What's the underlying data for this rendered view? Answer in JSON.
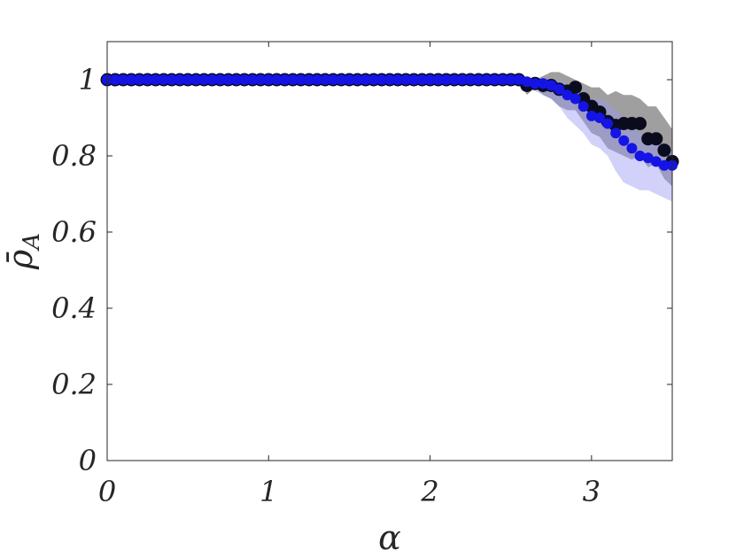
{
  "chart_data": {
    "type": "scatter",
    "title": "",
    "xlabel": "α",
    "ylabel": "ρ̄",
    "ylabel_subscript": "A",
    "xlim": [
      0,
      3.5
    ],
    "ylim": [
      0,
      1.1
    ],
    "xticks": [
      0,
      1,
      2,
      3
    ],
    "xtick_labels": [
      "0",
      "1",
      "2",
      "3"
    ],
    "yticks": [
      0,
      0.2,
      0.4,
      0.6,
      0.8,
      1
    ],
    "ytick_labels": [
      "0",
      "0.2",
      "0.4",
      "0.6",
      "0.8",
      "1"
    ],
    "grid": false,
    "legend": "none",
    "series": [
      {
        "color": "#0b0b1e",
        "band_color": "#7f7f7f",
        "x": [
          0,
          0.05,
          0.1,
          0.15,
          0.2,
          0.25,
          0.3,
          0.35,
          0.4,
          0.45,
          0.5,
          0.55,
          0.6,
          0.65,
          0.7,
          0.75,
          0.8,
          0.85,
          0.9,
          0.95,
          1,
          1.05,
          1.1,
          1.15,
          1.2,
          1.25,
          1.3,
          1.35,
          1.4,
          1.45,
          1.5,
          1.55,
          1.6,
          1.65,
          1.7,
          1.75,
          1.8,
          1.85,
          1.9,
          1.95,
          2,
          2.05,
          2.1,
          2.15,
          2.2,
          2.25,
          2.3,
          2.35,
          2.4,
          2.45,
          2.5,
          2.55,
          2.6,
          2.65,
          2.7,
          2.75,
          2.8,
          2.85,
          2.9,
          2.95,
          3,
          3.05,
          3.1,
          3.15,
          3.2,
          3.25,
          3.3,
          3.35,
          3.4,
          3.45,
          3.5
        ],
        "y": [
          1,
          1,
          1,
          1,
          1,
          1,
          1,
          1,
          1,
          1,
          1,
          1,
          1,
          1,
          1,
          1,
          1,
          1,
          1,
          1,
          1,
          1,
          1,
          1,
          1,
          1,
          1,
          1,
          1,
          1,
          1,
          1,
          1,
          1,
          1,
          1,
          1,
          1,
          1,
          1,
          1,
          1,
          1,
          1,
          1,
          1,
          1,
          1,
          1,
          1,
          1,
          1,
          0.985,
          0.99,
          0.985,
          0.985,
          0.975,
          0.97,
          0.98,
          0.95,
          0.93,
          0.915,
          0.89,
          0.88,
          0.885,
          0.885,
          0.885,
          0.845,
          0.845,
          0.815,
          0.785
        ],
        "band_lower": [
          1,
          1,
          1,
          1,
          1,
          1,
          1,
          1,
          1,
          1,
          1,
          1,
          1,
          1,
          1,
          1,
          1,
          1,
          1,
          1,
          1,
          1,
          1,
          1,
          1,
          1,
          1,
          1,
          1,
          1,
          1,
          1,
          1,
          1,
          1,
          1,
          1,
          1,
          1,
          1,
          1,
          1,
          1,
          1,
          1,
          1,
          1,
          1,
          1,
          1,
          1,
          1,
          0.96,
          0.98,
          0.96,
          0.95,
          0.93,
          0.92,
          0.92,
          0.89,
          0.86,
          0.85,
          0.82,
          0.81,
          0.8,
          0.79,
          0.8,
          0.77,
          0.78,
          0.74,
          0.72
        ],
        "band_upper": [
          1,
          1,
          1,
          1,
          1,
          1,
          1,
          1,
          1,
          1,
          1,
          1,
          1,
          1,
          1,
          1,
          1,
          1,
          1,
          1,
          1,
          1,
          1,
          1,
          1,
          1,
          1,
          1,
          1,
          1,
          1,
          1,
          1,
          1,
          1,
          1,
          1,
          1,
          1,
          1,
          1,
          1,
          1,
          1,
          1,
          1,
          1,
          1,
          1,
          1,
          1,
          1,
          1.0,
          1.0,
          1.01,
          1.02,
          1.02,
          1.01,
          1.0,
          0.99,
          0.98,
          0.98,
          0.96,
          0.97,
          0.96,
          0.96,
          0.95,
          0.93,
          0.93,
          0.9,
          0.87
        ]
      },
      {
        "color": "#1414e6",
        "band_color": "#9a9af2",
        "x": [
          0,
          0.05,
          0.1,
          0.15,
          0.2,
          0.25,
          0.3,
          0.35,
          0.4,
          0.45,
          0.5,
          0.55,
          0.6,
          0.65,
          0.7,
          0.75,
          0.8,
          0.85,
          0.9,
          0.95,
          1,
          1.05,
          1.1,
          1.15,
          1.2,
          1.25,
          1.3,
          1.35,
          1.4,
          1.45,
          1.5,
          1.55,
          1.6,
          1.65,
          1.7,
          1.75,
          1.8,
          1.85,
          1.9,
          1.95,
          2,
          2.05,
          2.1,
          2.15,
          2.2,
          2.25,
          2.3,
          2.35,
          2.4,
          2.45,
          2.5,
          2.55,
          2.6,
          2.65,
          2.7,
          2.75,
          2.8,
          2.85,
          2.9,
          2.95,
          3,
          3.05,
          3.1,
          3.15,
          3.2,
          3.25,
          3.3,
          3.35,
          3.4,
          3.45,
          3.5
        ],
        "y": [
          1,
          1,
          1,
          1,
          1,
          1,
          1,
          1,
          1,
          1,
          1,
          1,
          1,
          1,
          1,
          1,
          1,
          1,
          1,
          1,
          1,
          1,
          1,
          1,
          1,
          1,
          1,
          1,
          1,
          1,
          1,
          1,
          1,
          1,
          1,
          1,
          1,
          1,
          1,
          1,
          1,
          1,
          1,
          1,
          1,
          1,
          1,
          1,
          1,
          1,
          1,
          1,
          0.995,
          0.99,
          0.99,
          0.985,
          0.975,
          0.96,
          0.95,
          0.93,
          0.905,
          0.9,
          0.885,
          0.86,
          0.84,
          0.82,
          0.8,
          0.795,
          0.785,
          0.775,
          0.775
        ],
        "band_lower": [
          1,
          1,
          1,
          1,
          1,
          1,
          1,
          1,
          1,
          1,
          1,
          1,
          1,
          1,
          1,
          1,
          1,
          1,
          1,
          1,
          1,
          1,
          1,
          1,
          1,
          1,
          1,
          1,
          1,
          1,
          1,
          1,
          1,
          1,
          1,
          1,
          1,
          1,
          1,
          1,
          1,
          1,
          1,
          1,
          1,
          1,
          1,
          1,
          1,
          1,
          1,
          1,
          0.98,
          0.97,
          0.96,
          0.95,
          0.93,
          0.9,
          0.88,
          0.86,
          0.83,
          0.82,
          0.8,
          0.76,
          0.73,
          0.72,
          0.71,
          0.71,
          0.7,
          0.69,
          0.68
        ],
        "band_upper": [
          1,
          1,
          1,
          1,
          1,
          1,
          1,
          1,
          1,
          1,
          1,
          1,
          1,
          1,
          1,
          1,
          1,
          1,
          1,
          1,
          1,
          1,
          1,
          1,
          1,
          1,
          1,
          1,
          1,
          1,
          1,
          1,
          1,
          1,
          1,
          1,
          1,
          1,
          1,
          1,
          1,
          1,
          1,
          1,
          1,
          1,
          1,
          1,
          1,
          1,
          1,
          1,
          1.0,
          1.0,
          1.0,
          1.0,
          1.0,
          0.99,
          0.98,
          0.97,
          0.95,
          0.95,
          0.94,
          0.92,
          0.9,
          0.88,
          0.86,
          0.85,
          0.84,
          0.83,
          0.82
        ]
      }
    ]
  }
}
